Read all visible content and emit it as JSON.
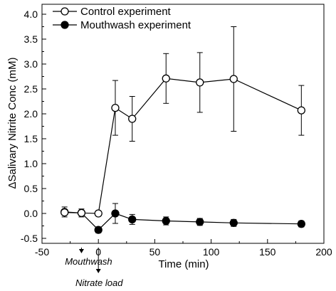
{
  "chart_data": {
    "type": "line",
    "xlabel": "Time (min)",
    "ylabel": "ΔSalivary Nitrite Conc (mM)",
    "xlim": [
      -50,
      200
    ],
    "ylim": [
      -0.6,
      4.2
    ],
    "x_ticks": [
      -50,
      0,
      50,
      100,
      150,
      200
    ],
    "x_tick_labels": [
      "-50",
      "0",
      "50",
      "100",
      "150",
      "200"
    ],
    "y_ticks": [
      -0.5,
      0.0,
      0.5,
      1.0,
      1.5,
      2.0,
      2.5,
      3.0,
      3.5,
      4.0
    ],
    "y_tick_labels": [
      "-0.5",
      "0.0",
      "0.5",
      "1.0",
      "1.5",
      "2.0",
      "2.5",
      "3.0",
      "3.5",
      "4.0"
    ],
    "legend_position": "top-left",
    "grid": false,
    "series": [
      {
        "name": "Control experiment",
        "marker": "open-circle",
        "x": [
          -30,
          -15,
          0,
          15,
          30,
          60,
          90,
          120,
          180
        ],
        "y": [
          0.02,
          0.01,
          0.0,
          2.12,
          1.9,
          2.71,
          2.63,
          2.7,
          2.07
        ],
        "err": [
          0.05,
          0.05,
          0.05,
          0.55,
          0.45,
          0.5,
          0.6,
          1.05,
          0.5
        ]
      },
      {
        "name": "Mouthwash experiment",
        "marker": "filled-circle",
        "x": [
          -30,
          -15,
          0,
          15,
          30,
          60,
          90,
          120,
          180
        ],
        "y": [
          0.03,
          0.01,
          -0.33,
          0.0,
          -0.12,
          -0.15,
          -0.17,
          -0.19,
          -0.21
        ],
        "err": [
          0.1,
          0.08,
          0.06,
          0.2,
          0.1,
          0.08,
          0.07,
          0.07,
          0.06
        ]
      }
    ],
    "annotations": [
      {
        "text": "Mouthwash",
        "x": -15
      },
      {
        "text": "Nitrate load",
        "x": 0
      }
    ]
  }
}
